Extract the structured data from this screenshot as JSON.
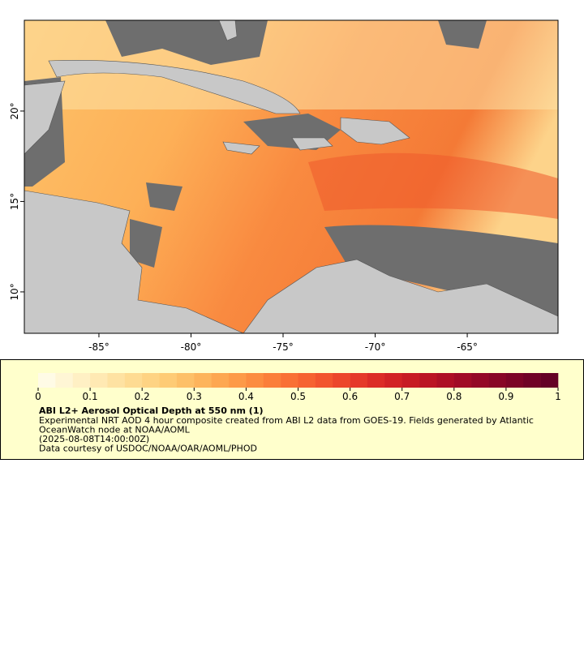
{
  "map": {
    "xlim": [
      -89.05,
      -60.07
    ],
    "ylim": [
      7.71,
      25.02
    ],
    "xticks": [
      {
        "value": -85,
        "label": "-85°"
      },
      {
        "value": -80,
        "label": "-80°"
      },
      {
        "value": -75,
        "label": "-75°"
      },
      {
        "value": -70,
        "label": "-70°"
      },
      {
        "value": -65,
        "label": "-65°"
      }
    ],
    "yticks": [
      {
        "value": 10,
        "label": "10°"
      },
      {
        "value": 15,
        "label": "15°"
      },
      {
        "value": 20,
        "label": "20°"
      }
    ]
  },
  "colorbar": {
    "range": [
      0,
      1
    ],
    "ticks": [
      0,
      0.1,
      0.2,
      0.3,
      0.4,
      0.5,
      0.6,
      0.7,
      0.8,
      0.9,
      1
    ],
    "colors": [
      "#fffbe6",
      "#fff6d5",
      "#fff0c4",
      "#ffe9b3",
      "#fee2a2",
      "#fedb92",
      "#fed383",
      "#fecb75",
      "#fdc068",
      "#fdb45c",
      "#fda751",
      "#fd9a48",
      "#fc8c40",
      "#fb7e3a",
      "#f97035",
      "#f66231",
      "#f2542e",
      "#ec462b",
      "#e53929",
      "#dc2c27",
      "#d22225",
      "#c71b24",
      "#bb1424",
      "#ae0f25",
      "#a10b26",
      "#940826",
      "#880626",
      "#7c0426",
      "#700226",
      "#650126"
    ]
  },
  "legend": {
    "title": "ABI L2+ Aerosol Optical Depth at 550 nm (1)",
    "lines": [
      "Experimental NRT AOD 4 hour composite created from ABI L2 data from GOES-19. Fields generated by Atlantic",
      "OceanWatch node at NOAA/AOML",
      "(2025-08-08T14:00:00Z)",
      "Data courtesy of USDOC/NOAA/OAR/AOML/PHOD"
    ]
  }
}
